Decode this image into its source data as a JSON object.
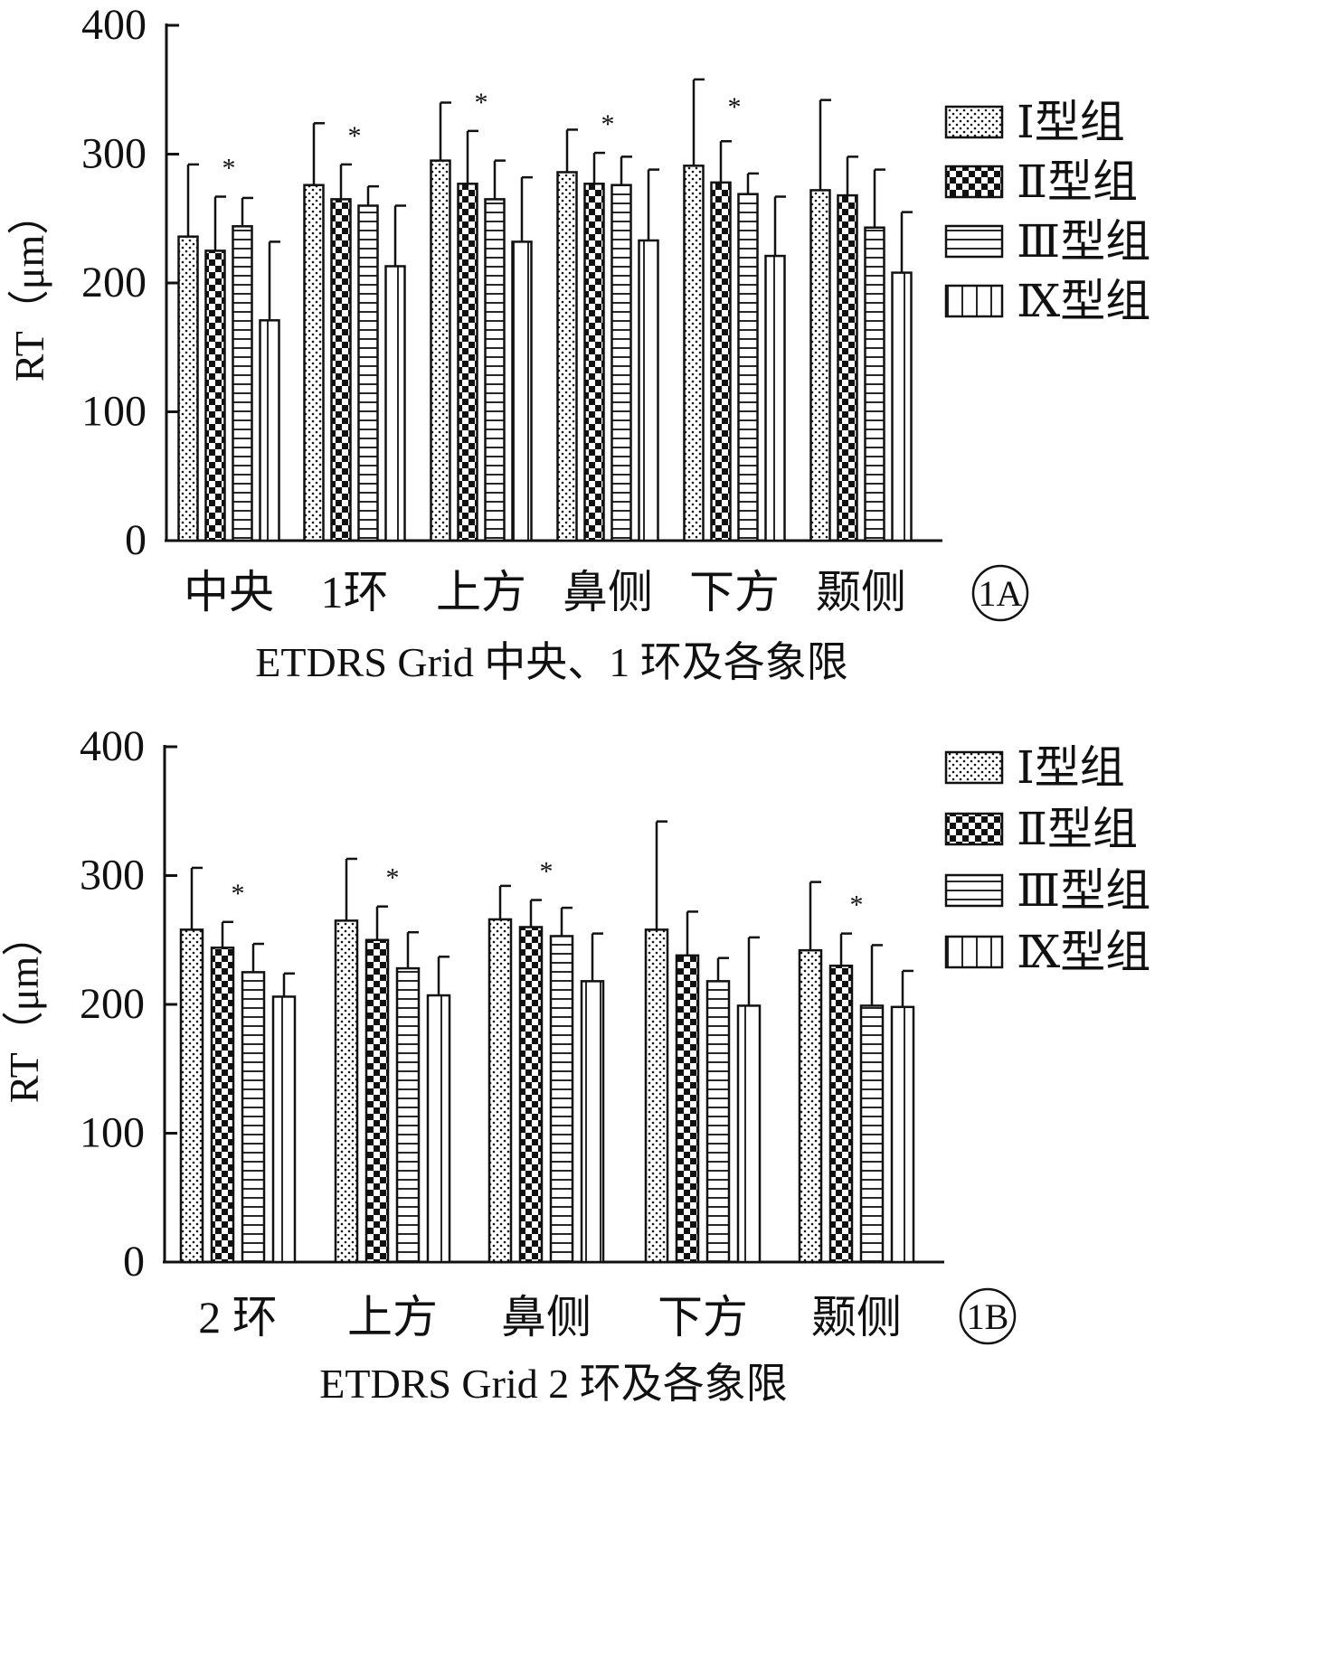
{
  "colors": {
    "ink": "#111111",
    "background": "#ffffff"
  },
  "chart_data": [
    {
      "type": "bar",
      "panel_label": "1A",
      "xlabel": "ETDRS Grid 中央、1 环及各象限",
      "ylabel": "RT（μm）",
      "ylim": [
        0,
        400
      ],
      "yticks": [
        "0",
        "100",
        "200",
        "300",
        "400"
      ],
      "categories": [
        "中央",
        "1环",
        "上方",
        "鼻侧",
        "下方",
        "颞侧"
      ],
      "series": [
        {
          "name": "Ⅰ型组",
          "pattern": "dots",
          "values": [
            236,
            276,
            295,
            286,
            291,
            272
          ],
          "sd": [
            56,
            48,
            45,
            33,
            67,
            70
          ]
        },
        {
          "name": "Ⅱ型组",
          "pattern": "checker",
          "values": [
            225,
            265,
            277,
            277,
            278,
            268
          ],
          "sd": [
            42,
            27,
            41,
            24,
            32,
            30
          ]
        },
        {
          "name": "Ⅲ型组",
          "pattern": "hlines",
          "values": [
            244,
            260,
            265,
            276,
            269,
            243
          ],
          "sd": [
            22,
            15,
            30,
            22,
            16,
            45
          ]
        },
        {
          "name": "Ⅸ型组",
          "pattern": "vlines",
          "values": [
            171,
            213,
            232,
            233,
            221,
            208
          ],
          "sd": [
            61,
            47,
            50,
            55,
            46,
            47
          ]
        }
      ],
      "significance": [
        "*",
        "*",
        "*",
        "*",
        "*",
        ""
      ],
      "legend_position": "right",
      "grid": false
    },
    {
      "type": "bar",
      "panel_label": "1B",
      "xlabel": "ETDRS Grid 2 环及各象限",
      "ylabel": "RT（μm）",
      "ylim": [
        0,
        400
      ],
      "yticks": [
        "0",
        "100",
        "200",
        "300",
        "400"
      ],
      "categories": [
        "2 环",
        "上方",
        "鼻侧",
        "下方",
        "颞侧"
      ],
      "series": [
        {
          "name": "Ⅰ型组",
          "pattern": "dots",
          "values": [
            258,
            265,
            266,
            258,
            242
          ],
          "sd": [
            48,
            48,
            26,
            84,
            53
          ]
        },
        {
          "name": "Ⅱ型组",
          "pattern": "checker",
          "values": [
            244,
            250,
            260,
            238,
            230
          ],
          "sd": [
            20,
            26,
            21,
            34,
            25
          ]
        },
        {
          "name": "Ⅲ型组",
          "pattern": "hlines",
          "values": [
            225,
            228,
            253,
            218,
            199
          ],
          "sd": [
            22,
            28,
            22,
            18,
            47
          ]
        },
        {
          "name": "Ⅸ型组",
          "pattern": "vlines",
          "values": [
            206,
            207,
            218,
            199,
            198
          ],
          "sd": [
            18,
            30,
            37,
            53,
            28
          ]
        }
      ],
      "significance": [
        "*",
        "*",
        "*",
        "",
        "*"
      ],
      "legend_position": "right",
      "grid": false
    }
  ]
}
